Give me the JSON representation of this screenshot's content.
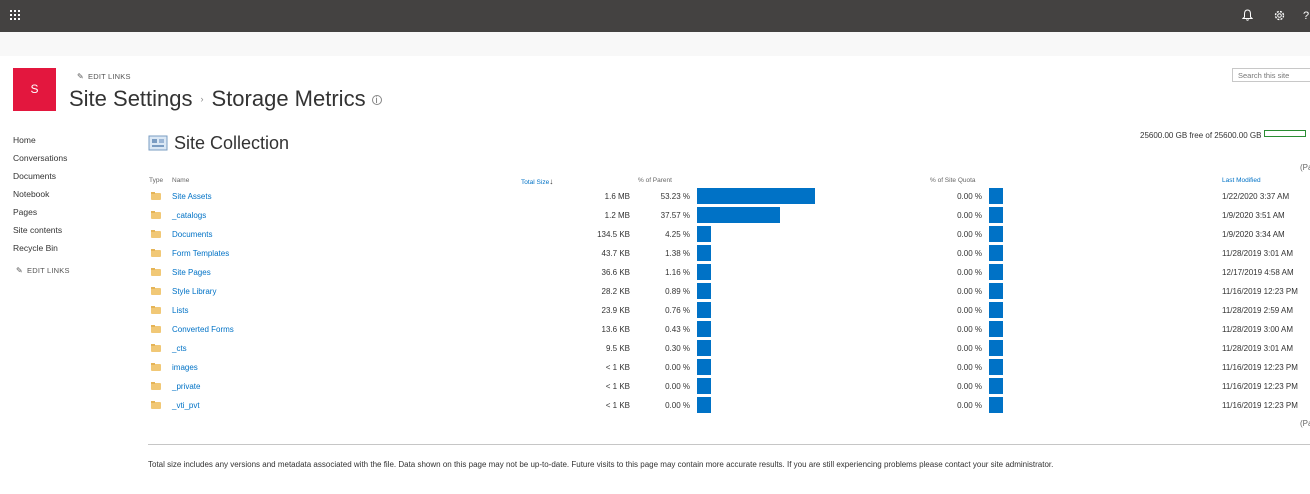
{
  "topbar": {
    "app_launcher_icon": "waffle-icon",
    "notification_icon": "bell-icon",
    "settings_icon": "gear-icon",
    "help_glyph": "?"
  },
  "site": {
    "logo_letter": "S",
    "edit_links": "EDIT LINKS",
    "search_placeholder": "Search this site"
  },
  "breadcrumb": {
    "parent": "Site Settings",
    "current": "Storage Metrics",
    "separator": "›"
  },
  "leftnav": {
    "items": [
      "Home",
      "Conversations",
      "Documents",
      "Notebook",
      "Pages",
      "Site contents",
      "Recycle Bin"
    ],
    "edit_links": "EDIT LINKS"
  },
  "main": {
    "section_title": "Site Collection",
    "quota_text": "25600.00 GB free of 25600.00 GB",
    "paging_top": "(Pa",
    "paging_bottom": "(Pa",
    "columns": {
      "type": "Type",
      "name": "Name",
      "total_size": "Total Size",
      "sort_arrow": "↓",
      "pct_parent": "% of Parent",
      "pct_quota": "% of Site Quota",
      "last_modified": "Last Modified"
    },
    "rows": [
      {
        "name": "Site Assets",
        "size": "1.6 MB",
        "pct_parent": "53.23 %",
        "parent_value": 53.23,
        "pct_quota": "0.00 %",
        "modified": "1/22/2020 3:37 AM"
      },
      {
        "name": "_catalogs",
        "size": "1.2 MB",
        "pct_parent": "37.57 %",
        "parent_value": 37.57,
        "pct_quota": "0.00 %",
        "modified": "1/9/2020 3:51 AM"
      },
      {
        "name": "Documents",
        "size": "134.5 KB",
        "pct_parent": "4.25 %",
        "parent_value": 4.25,
        "pct_quota": "0.00 %",
        "modified": "1/9/2020 3:34 AM"
      },
      {
        "name": "Form Templates",
        "size": "43.7 KB",
        "pct_parent": "1.38 %",
        "parent_value": 1.38,
        "pct_quota": "0.00 %",
        "modified": "11/28/2019 3:01 AM"
      },
      {
        "name": "Site Pages",
        "size": "36.6 KB",
        "pct_parent": "1.16 %",
        "parent_value": 1.16,
        "pct_quota": "0.00 %",
        "modified": "12/17/2019 4:58 AM"
      },
      {
        "name": "Style Library",
        "size": "28.2 KB",
        "pct_parent": "0.89 %",
        "parent_value": 0.89,
        "pct_quota": "0.00 %",
        "modified": "11/16/2019 12:23 PM"
      },
      {
        "name": "Lists",
        "size": "23.9 KB",
        "pct_parent": "0.76 %",
        "parent_value": 0.76,
        "pct_quota": "0.00 %",
        "modified": "11/28/2019 2:59 AM"
      },
      {
        "name": "Converted Forms",
        "size": "13.6 KB",
        "pct_parent": "0.43 %",
        "parent_value": 0.43,
        "pct_quota": "0.00 %",
        "modified": "11/28/2019 3:00 AM"
      },
      {
        "name": "_cts",
        "size": "9.5 KB",
        "pct_parent": "0.30 %",
        "parent_value": 0.3,
        "pct_quota": "0.00 %",
        "modified": "11/28/2019 3:01 AM"
      },
      {
        "name": "images",
        "size": "< 1 KB",
        "pct_parent": "0.00 %",
        "parent_value": 0.0,
        "pct_quota": "0.00 %",
        "modified": "11/16/2019 12:23 PM"
      },
      {
        "name": "_private",
        "size": "< 1 KB",
        "pct_parent": "0.00 %",
        "parent_value": 0.0,
        "pct_quota": "0.00 %",
        "modified": "11/16/2019 12:23 PM"
      },
      {
        "name": "_vti_pvt",
        "size": "< 1 KB",
        "pct_parent": "0.00 %",
        "parent_value": 0.0,
        "pct_quota": "0.00 %",
        "modified": "11/16/2019 12:23 PM"
      }
    ],
    "footer": "Total size includes any versions and metadata associated with the file. Data shown on this page may not be up-to-date. Future visits to this page may contain more accurate results. If you are still experiencing problems please contact your site administrator."
  },
  "colors": {
    "suite_bar": "#444241",
    "logo": "#e3173e",
    "accent": "#0072c6",
    "folder": "#f1c876"
  }
}
